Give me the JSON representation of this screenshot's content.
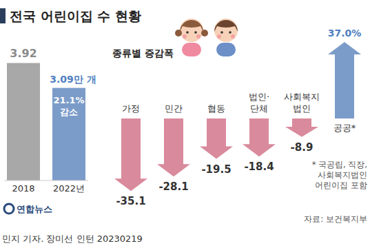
{
  "chart_data": [
    {
      "type": "bar",
      "title": "전국 어린이집 수 현황",
      "categories": [
        "2018",
        "2022년"
      ],
      "values": [
        3.92,
        3.09
      ],
      "value_labels": [
        "3.92",
        "3.09만 개"
      ],
      "colors": [
        "#a8a8a8",
        "#7b9cc9"
      ],
      "annotations": [
        "21.1% 감소"
      ],
      "ylim": [
        0,
        4
      ],
      "data_labels": true,
      "tick_labels": "x"
    },
    {
      "type": "bar",
      "subtitle": "종류별 증감폭",
      "categories": [
        "가정",
        "민간",
        "협동",
        "법인·단체",
        "사회복지법인",
        "공공*"
      ],
      "values": [
        -35.1,
        -28.1,
        -19.5,
        -18.4,
        -8.9,
        37.0
      ],
      "value_labels": [
        "-35.1",
        "-28.1",
        "-19.5",
        "-18.4",
        "-8.9",
        "37.0%"
      ],
      "colors": [
        "#d98a9c",
        "#d98a9c",
        "#d98a9c",
        "#d98a9c",
        "#d98a9c",
        "#7b9cc9"
      ],
      "notes": [
        "* 국공립, 직장,",
        "사회복지법인",
        "어린이집 포함"
      ],
      "ylim": [
        -40,
        40
      ],
      "data_labels": true,
      "tick_labels": "x"
    }
  ],
  "logo": "연합뉴스",
  "source": "자료: 보건복지부",
  "credit": "민지 기자. 장미선 인턴 20230219"
}
